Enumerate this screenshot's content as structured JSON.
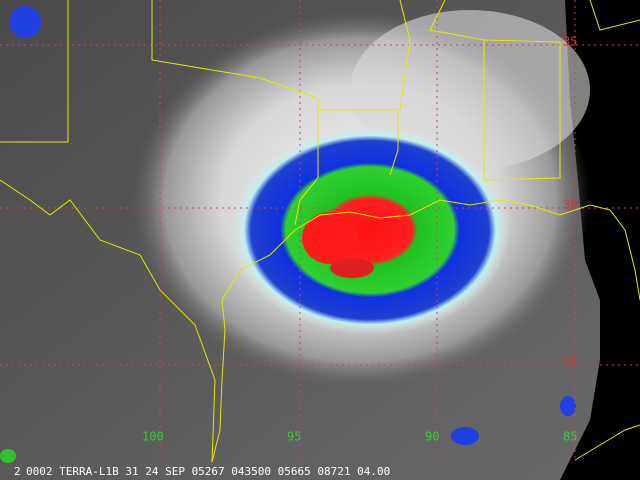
{
  "lat_labels": [
    "35",
    "30",
    "25"
  ],
  "lon_labels": [
    "100",
    "95",
    "90",
    "85"
  ],
  "footer": {
    "frame": "2",
    "caption": "0002 TERRA-L1B 31 24 SEP 05267 043500 05665 08721 04.00"
  }
}
